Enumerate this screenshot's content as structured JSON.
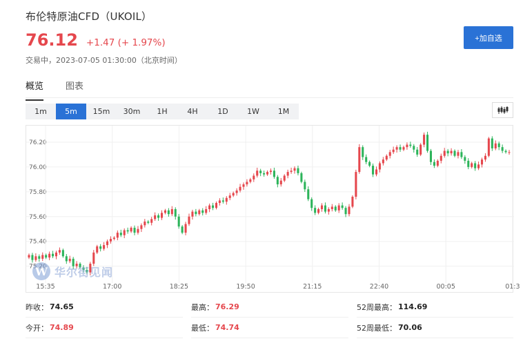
{
  "header": {
    "title": "布伦特原油CFD（UKOIL）",
    "price": "76.12",
    "change": "+1.47 (+ 1.97%)",
    "status": "交易中，2023-07-05 01:30:00（北京时间）",
    "add_button": "+加自选"
  },
  "tabs": [
    {
      "label": "概览",
      "active": true
    },
    {
      "label": "图表",
      "active": false
    }
  ],
  "periods": [
    {
      "label": "1m",
      "active": false
    },
    {
      "label": "5m",
      "active": true
    },
    {
      "label": "15m",
      "active": false
    },
    {
      "label": "30m",
      "active": false
    },
    {
      "label": "1H",
      "active": false
    },
    {
      "label": "4H",
      "active": false
    },
    {
      "label": "1D",
      "active": false
    },
    {
      "label": "1W",
      "active": false
    },
    {
      "label": "1M",
      "active": false
    }
  ],
  "chart_type_icon": "candlestick-icon",
  "watermark": {
    "logo_letter": "W",
    "text": "华尔街见闻"
  },
  "colors": {
    "up": "#e5474d",
    "down": "#2cb45a",
    "accent": "#2a72d6"
  },
  "chart_data": {
    "type": "candlestick",
    "x_ticks": [
      "15:35",
      "17:00",
      "18:25",
      "19:50",
      "21:15",
      "22:40",
      "00:05",
      "01:3"
    ],
    "y_ticks": [
      "75.20",
      "75.40",
      "75.60",
      "75.80",
      "76.00",
      "76.20"
    ],
    "ylim": [
      75.12,
      76.3
    ],
    "grid": true,
    "closes": [
      75.29,
      75.25,
      75.28,
      75.26,
      75.29,
      75.27,
      75.3,
      75.28,
      75.31,
      75.33,
      75.28,
      75.24,
      75.26,
      75.2,
      75.22,
      75.19,
      75.17,
      75.15,
      75.22,
      75.31,
      75.36,
      75.34,
      75.37,
      75.4,
      75.42,
      75.43,
      75.47,
      75.45,
      75.49,
      75.48,
      75.51,
      75.47,
      75.5,
      75.53,
      75.56,
      75.55,
      75.58,
      75.61,
      75.59,
      75.63,
      75.65,
      75.62,
      75.66,
      75.6,
      75.52,
      75.47,
      75.54,
      75.6,
      75.64,
      75.62,
      75.65,
      75.63,
      75.66,
      75.69,
      75.67,
      75.71,
      75.73,
      75.72,
      75.75,
      75.77,
      75.79,
      75.81,
      75.84,
      75.86,
      75.88,
      75.9,
      75.93,
      75.97,
      75.95,
      75.94,
      75.96,
      75.97,
      75.92,
      75.86,
      75.89,
      75.93,
      75.96,
      75.97,
      75.99,
      75.95,
      75.88,
      75.82,
      75.74,
      75.67,
      75.63,
      75.66,
      75.69,
      75.64,
      75.66,
      75.68,
      75.65,
      75.69,
      75.67,
      75.62,
      75.68,
      75.76,
      75.96,
      76.16,
      76.08,
      76.04,
      76.01,
      75.94,
      75.98,
      76.03,
      76.06,
      76.09,
      76.12,
      76.14,
      76.16,
      76.14,
      76.16,
      76.18,
      76.17,
      76.14,
      76.1,
      76.18,
      76.26,
      76.13,
      76.04,
      76.01,
      76.05,
      76.09,
      76.13,
      76.11,
      76.13,
      76.09,
      76.12,
      76.08,
      76.05,
      76.0,
      76.03,
      75.99,
      76.02,
      76.06,
      76.09,
      76.23,
      76.15,
      76.19,
      76.16,
      76.13,
      76.12,
      76.12
    ]
  },
  "stats": [
    {
      "label": "昨收：",
      "value": "74.65",
      "color": "dark"
    },
    {
      "label": "最高：",
      "value": "76.29",
      "color": "red"
    },
    {
      "label": "52周最高：",
      "value": "114.69",
      "color": "dark"
    },
    {
      "label": "今开：",
      "value": "74.89",
      "color": "red"
    },
    {
      "label": "最低：",
      "value": "74.74",
      "color": "red"
    },
    {
      "label": "52周最低：",
      "value": "70.06",
      "color": "dark"
    }
  ]
}
